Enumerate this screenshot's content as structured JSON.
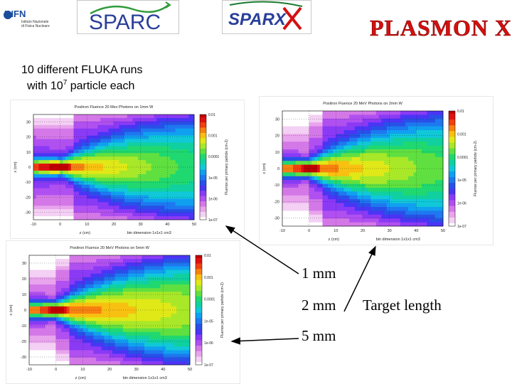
{
  "header": {
    "logos": {
      "infn": {
        "title": "INFN",
        "sub1": "Istituto Nazionale",
        "sub2": "di Fisica Nucleare"
      },
      "sparc": {
        "title": "SPARC"
      },
      "sparx": {
        "title": "SPARX"
      },
      "plasmon": {
        "title": "PLASMON X"
      }
    }
  },
  "intro": {
    "line1": "10 different FLUKA runs",
    "line2_pre": "with 10",
    "line2_sup": "7",
    "line2_post": " particle each"
  },
  "panels": [
    {
      "id": "1mm",
      "title": "Positron Fluence 20 Mev Photons on 1mm W",
      "xlabel": "z (cm)",
      "ylabel": "x (cm)",
      "colorbar_label": "Fluence per primary particle (cm-2)",
      "bin_note": "bin dimension 1x1x1 cm3",
      "x_ticks": [
        "-10",
        "0",
        "10",
        "20",
        "30",
        "40",
        "50"
      ],
      "y_ticks": [
        "30",
        "20",
        "10",
        "0",
        "-10",
        "-20",
        "-30"
      ],
      "cb_ticks": [
        "0.01",
        "0.001",
        "0.0001",
        "1e-05",
        "1e-06",
        "1e-07"
      ]
    },
    {
      "id": "2mm",
      "title": "Positron Fluence 20 MeV Photons on 2mm W",
      "xlabel": "z (cm)",
      "ylabel": "x (cm)",
      "colorbar_label": "Fluence per primary particle (cm-2)",
      "bin_note": "bin dimension 1x1x1 cm3",
      "x_ticks": [
        "-10",
        "0",
        "10",
        "20",
        "30",
        "40",
        "50"
      ],
      "y_ticks": [
        "30",
        "20",
        "10",
        "0",
        "-10",
        "-20",
        "-30"
      ],
      "cb_ticks": [
        "0.01",
        "0.001",
        "0.0001",
        "1e-05",
        "1e-06",
        "1e-07"
      ]
    },
    {
      "id": "5mm",
      "title": "Positron Fluence 20 MeV Photons on 5mm W",
      "xlabel": "z (cm)",
      "ylabel": "x (cm)",
      "colorbar_label": "Fluence per primary particle (cm-2)",
      "bin_note": "bin dimension 1x1x1 cm3",
      "x_ticks": [
        "-10",
        "0",
        "10",
        "20",
        "30",
        "40",
        "50"
      ],
      "y_ticks": [
        "30",
        "20",
        "10",
        "0",
        "-10",
        "-20",
        "-30"
      ],
      "cb_ticks": [
        "0.01",
        "0.001",
        "0.0001",
        "1e-05",
        "1e-06",
        "1e-07"
      ]
    }
  ],
  "annotations": {
    "l1": "1 mm",
    "l2": "2 mm",
    "l3": "5 mm",
    "target": "Target length"
  },
  "colors": {
    "plasmon_red": "#d41010",
    "sparc_blue": "#2a3f9a"
  }
}
